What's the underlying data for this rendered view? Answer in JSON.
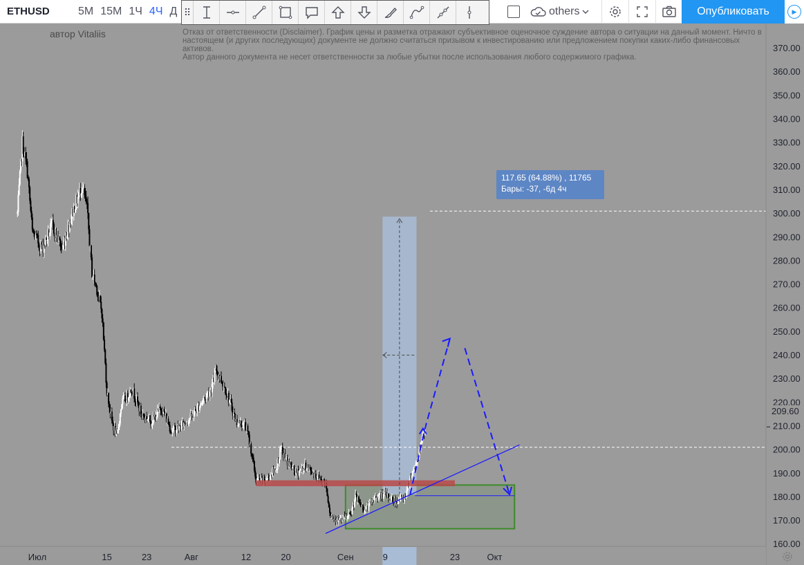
{
  "toolbar": {
    "symbol": "ETHUSD",
    "intervals": [
      "5М",
      "15М",
      "1Ч",
      "4Ч",
      "Д"
    ],
    "active_interval": "4Ч",
    "drawing_tools": [
      "text-cursor-icon",
      "horizontal-line-icon",
      "trend-line-icon",
      "rectangle-icon",
      "comment-icon",
      "arrow-up-icon",
      "arrow-down-icon",
      "brush-icon",
      "path-icon",
      "ray-icon",
      "vertical-line-icon"
    ],
    "others_label": "others",
    "publish_label": "Опубликовать"
  },
  "chart_header": {
    "author": "автор Vitaliis",
    "disclaimer": "Отказ от ответственности (Disclaimer). График цены и разметка отражают субъективное оценочное суждение автора о ситуации на данный момент. Ничто в настоящем (и других последующих) документе не должно считаться призывом к инвестированию или предложением покупки каких-либо финансовых активов.\nАвтор данного документа не несет ответственности за любые убытки после использования любого содержимого графика."
  },
  "measure_tooltip": {
    "line1": "117.65 (64.88%) , 11765",
    "line2": "Бары: -37, -6д 4ч"
  },
  "current_price": "209.60",
  "colors": {
    "background": "#9b9b9b",
    "up_candle": "#ffffff",
    "down_candle": "#000000",
    "resistance_zone": "#b84a4a",
    "support_zone": "#3d8a2a",
    "projection": "#1a1aff",
    "measure": "#a9bcd6"
  },
  "chart_data": {
    "type": "candlestick",
    "symbol": "ETHUSD",
    "interval": "4Ч",
    "ylim": [
      157,
      375
    ],
    "y_ticks": [
      160,
      170,
      180,
      190,
      200,
      210,
      220,
      230,
      240,
      250,
      260,
      270,
      280,
      290,
      300,
      310,
      320,
      330,
      340,
      350,
      360,
      370
    ],
    "x_ticks": [
      {
        "label": "Июл",
        "date": "2019-07-01"
      },
      {
        "label": "15",
        "date": "2019-07-15"
      },
      {
        "label": "23",
        "date": "2019-07-23"
      },
      {
        "label": "Авг",
        "date": "2019-08-01"
      },
      {
        "label": "12",
        "date": "2019-08-12"
      },
      {
        "label": "20",
        "date": "2019-08-20"
      },
      {
        "label": "Сен",
        "date": "2019-09-01"
      },
      {
        "label": "9",
        "date": "2019-09-09"
      },
      {
        "label": "23",
        "date": "2019-09-23"
      },
      {
        "label": "Окт",
        "date": "2019-10-01"
      }
    ],
    "highlighted_x_tick": "9",
    "close_path": [
      [
        "2019-06-27",
        300
      ],
      [
        "2019-06-28",
        330
      ],
      [
        "2019-06-29",
        318
      ],
      [
        "2019-06-30",
        292
      ],
      [
        "2019-07-02",
        285
      ],
      [
        "2019-07-04",
        295
      ],
      [
        "2019-07-06",
        285
      ],
      [
        "2019-07-08",
        300
      ],
      [
        "2019-07-10",
        312
      ],
      [
        "2019-07-11",
        302
      ],
      [
        "2019-07-12",
        275
      ],
      [
        "2019-07-13",
        268
      ],
      [
        "2019-07-14",
        258
      ],
      [
        "2019-07-15",
        225
      ],
      [
        "2019-07-16",
        212
      ],
      [
        "2019-07-17",
        205
      ],
      [
        "2019-07-18",
        220
      ],
      [
        "2019-07-19",
        222
      ],
      [
        "2019-07-20",
        226
      ],
      [
        "2019-07-22",
        215
      ],
      [
        "2019-07-24",
        212
      ],
      [
        "2019-07-26",
        218
      ],
      [
        "2019-07-28",
        208
      ],
      [
        "2019-07-30",
        210
      ],
      [
        "2019-08-01",
        214
      ],
      [
        "2019-08-03",
        220
      ],
      [
        "2019-08-05",
        226
      ],
      [
        "2019-08-06",
        234
      ],
      [
        "2019-08-08",
        225
      ],
      [
        "2019-08-10",
        212
      ],
      [
        "2019-08-12",
        210
      ],
      [
        "2019-08-13",
        200
      ],
      [
        "2019-08-14",
        187
      ],
      [
        "2019-08-16",
        187
      ],
      [
        "2019-08-18",
        192
      ],
      [
        "2019-08-19",
        200
      ],
      [
        "2019-08-20",
        196
      ],
      [
        "2019-08-22",
        190
      ],
      [
        "2019-08-24",
        193
      ],
      [
        "2019-08-26",
        189
      ],
      [
        "2019-08-28",
        186
      ],
      [
        "2019-08-29",
        172
      ],
      [
        "2019-08-31",
        170
      ],
      [
        "2019-09-02",
        172
      ],
      [
        "2019-09-03",
        180
      ],
      [
        "2019-09-05",
        174
      ],
      [
        "2019-09-07",
        180
      ],
      [
        "2019-09-09",
        181
      ],
      [
        "2019-09-11",
        178
      ],
      [
        "2019-09-13",
        180
      ],
      [
        "2019-09-14",
        188
      ],
      [
        "2019-09-15",
        193
      ],
      [
        "2019-09-16",
        200
      ],
      [
        "2019-09-17",
        209.6
      ]
    ],
    "annotations": {
      "current_price": 209.6,
      "dashed_level_high": 301,
      "dashed_level_low": 201,
      "resistance_zone": {
        "from": "2019-08-14",
        "to": "2019-09-23",
        "low": 184.5,
        "high": 187
      },
      "support_box": {
        "from": "2019-09-01",
        "to": "2019-10-05",
        "low": 166.5,
        "high": 185
      },
      "horizontal_line": {
        "from": "2019-09-15",
        "to": "2019-10-05",
        "value": 180.5
      },
      "trendline": {
        "from": [
          "2019-08-28",
          164.5
        ],
        "to": [
          "2019-10-06",
          202
        ]
      },
      "projection_path": [
        [
          "2019-09-14",
          181
        ],
        [
          "2019-09-17",
          209
        ],
        [
          "2019-09-22",
          247
        ],
        [
          "2019-09-25",
          243
        ],
        [
          "2019-10-04",
          181
        ]
      ],
      "measure_range": {
        "from": "2019-09-09",
        "to": "2019-09-15",
        "low": 181,
        "high": 298.65,
        "change": 117.65,
        "change_pct": 64.88,
        "bars": -37
      }
    }
  }
}
